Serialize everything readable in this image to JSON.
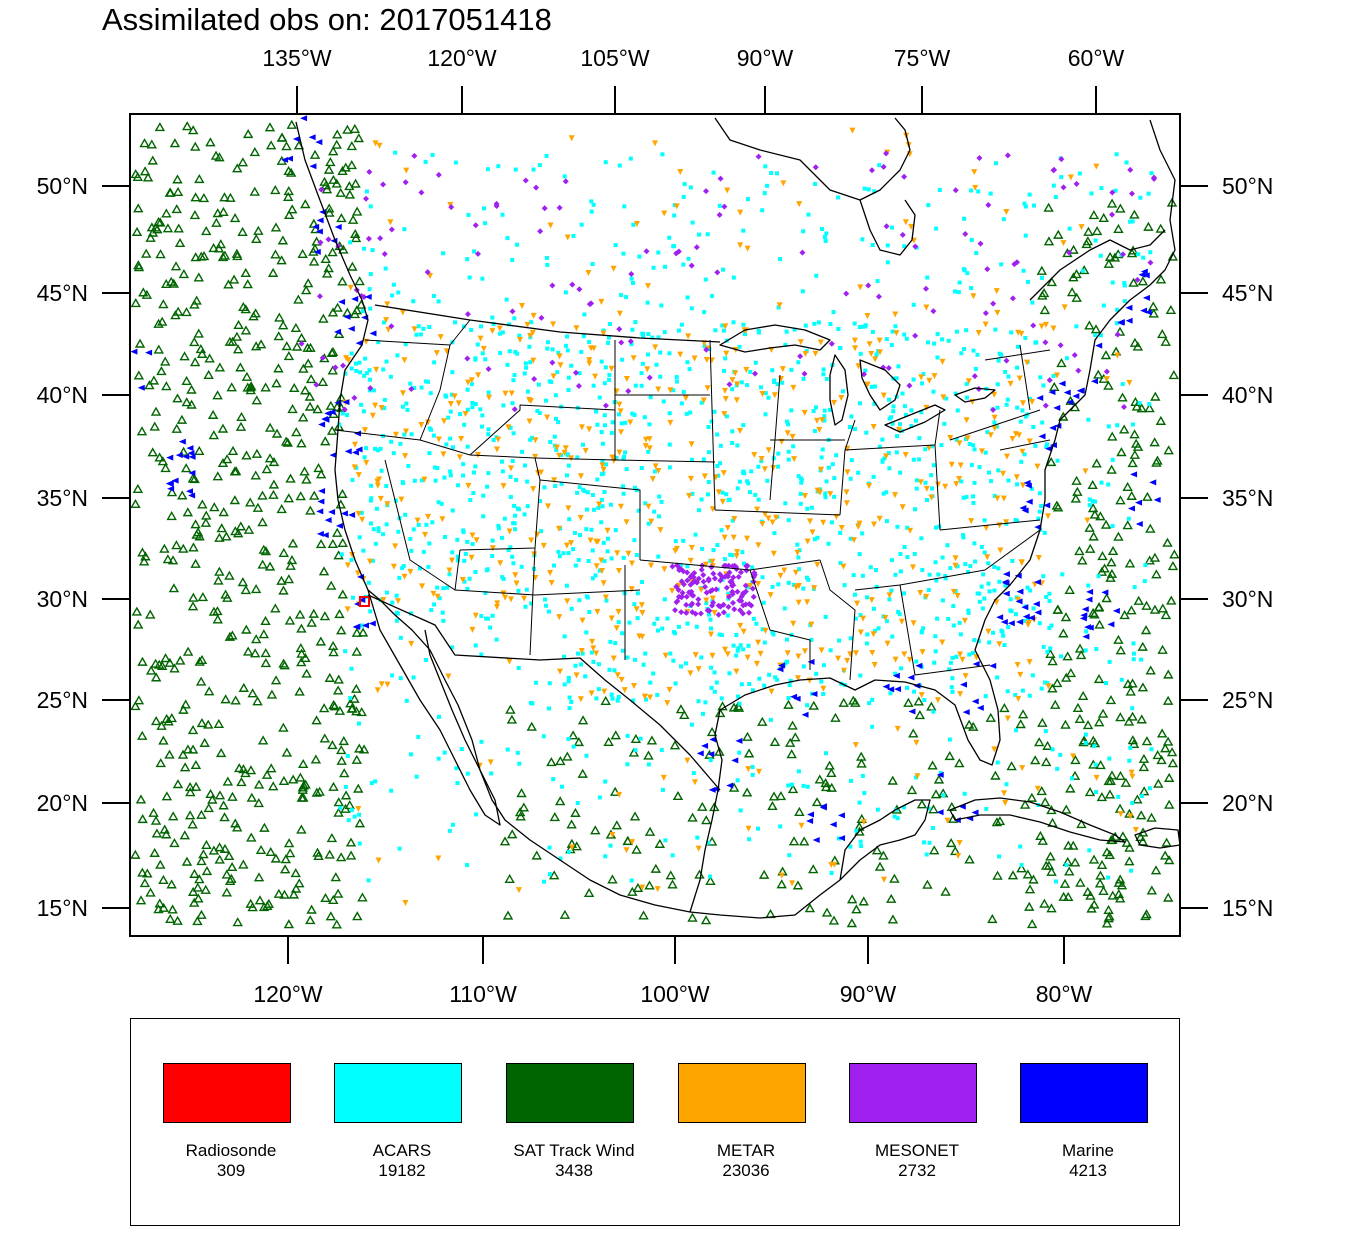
{
  "title": "Assimilated obs on: 2017051418",
  "top_lon_labels": [
    "135°W",
    "120°W",
    "105°W",
    "90°W",
    "75°W",
    "60°W"
  ],
  "bottom_lon_labels": [
    "120°W",
    "110°W",
    "100°W",
    "90°W",
    "80°W"
  ],
  "left_lat_labels": [
    "50°N",
    "45°N",
    "40°N",
    "35°N",
    "30°N",
    "25°N",
    "20°N",
    "15°N"
  ],
  "right_lat_labels": [
    "50°N",
    "45°N",
    "40°N",
    "35°N",
    "30°N",
    "25°N",
    "20°N",
    "15°N"
  ],
  "legend": [
    {
      "name": "Radiosonde",
      "count": "309",
      "color": "#ff0000"
    },
    {
      "name": "ACARS",
      "count": "19182",
      "color": "#00ffff"
    },
    {
      "name": "SAT Track Wind",
      "count": "3438",
      "color": "#006400"
    },
    {
      "name": "METAR",
      "count": "23036",
      "color": "#ffa500"
    },
    {
      "name": "MESONET",
      "count": "2732",
      "color": "#a020f0"
    },
    {
      "name": "Marine",
      "count": "4213",
      "color": "#0000ff"
    }
  ],
  "colors": {
    "coastline": "#000000",
    "frame": "#000000",
    "background": "#ffffff"
  }
}
